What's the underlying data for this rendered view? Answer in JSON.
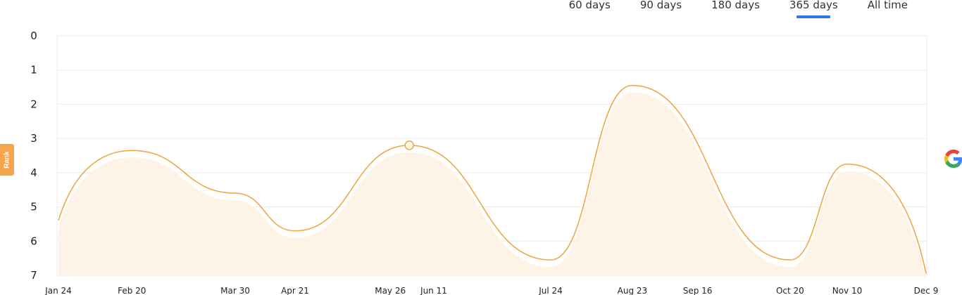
{
  "tabs": [
    {
      "label": "60 days",
      "active": false
    },
    {
      "label": "90 days",
      "active": false
    },
    {
      "label": "180 days",
      "active": false
    },
    {
      "label": "365 days",
      "active": true
    },
    {
      "label": "All time",
      "active": false
    }
  ],
  "rank_label": "Rank",
  "colors": {
    "line": "#f0a43c",
    "area": "#fdf3e6",
    "grid": "#ececec",
    "active_tab": "#3276e4",
    "badge": "#f6a54c"
  },
  "search_engine_icon": "google-icon",
  "chart_data": {
    "type": "area",
    "xlabel": "",
    "ylabel": "Rank",
    "ylim": [
      0,
      7
    ],
    "y_inverted": true,
    "yticks": [
      "0",
      "1",
      "2",
      "3",
      "4",
      "5",
      "6",
      "7"
    ],
    "xticks": [
      "Jan 24",
      "Feb 20",
      "Mar 30",
      "Apr 21",
      "May 26",
      "Jun 11",
      "Jul 24",
      "Aug 23",
      "Sep 16",
      "Oct 20",
      "Nov 10",
      "Dec 9"
    ],
    "grid": true,
    "series": [
      {
        "points": [
          {
            "x": "Jan 24",
            "y": 5.4
          },
          {
            "x": "Feb 20",
            "y": 3.35
          },
          {
            "x": "Mar 30",
            "y": 4.6
          },
          {
            "x": "Apr 21",
            "y": 5.7
          },
          {
            "x": "Jun 2",
            "y": 3.2
          },
          {
            "x": "Jul 24",
            "y": 6.55
          },
          {
            "x": "Aug 23",
            "y": 1.45
          },
          {
            "x": "Oct 20",
            "y": 6.55
          },
          {
            "x": "Nov 10",
            "y": 3.75
          },
          {
            "x": "Dec 9",
            "y": 6.95
          }
        ]
      }
    ],
    "highlight_point": {
      "x": "Jun 2",
      "y": 3.2
    }
  }
}
